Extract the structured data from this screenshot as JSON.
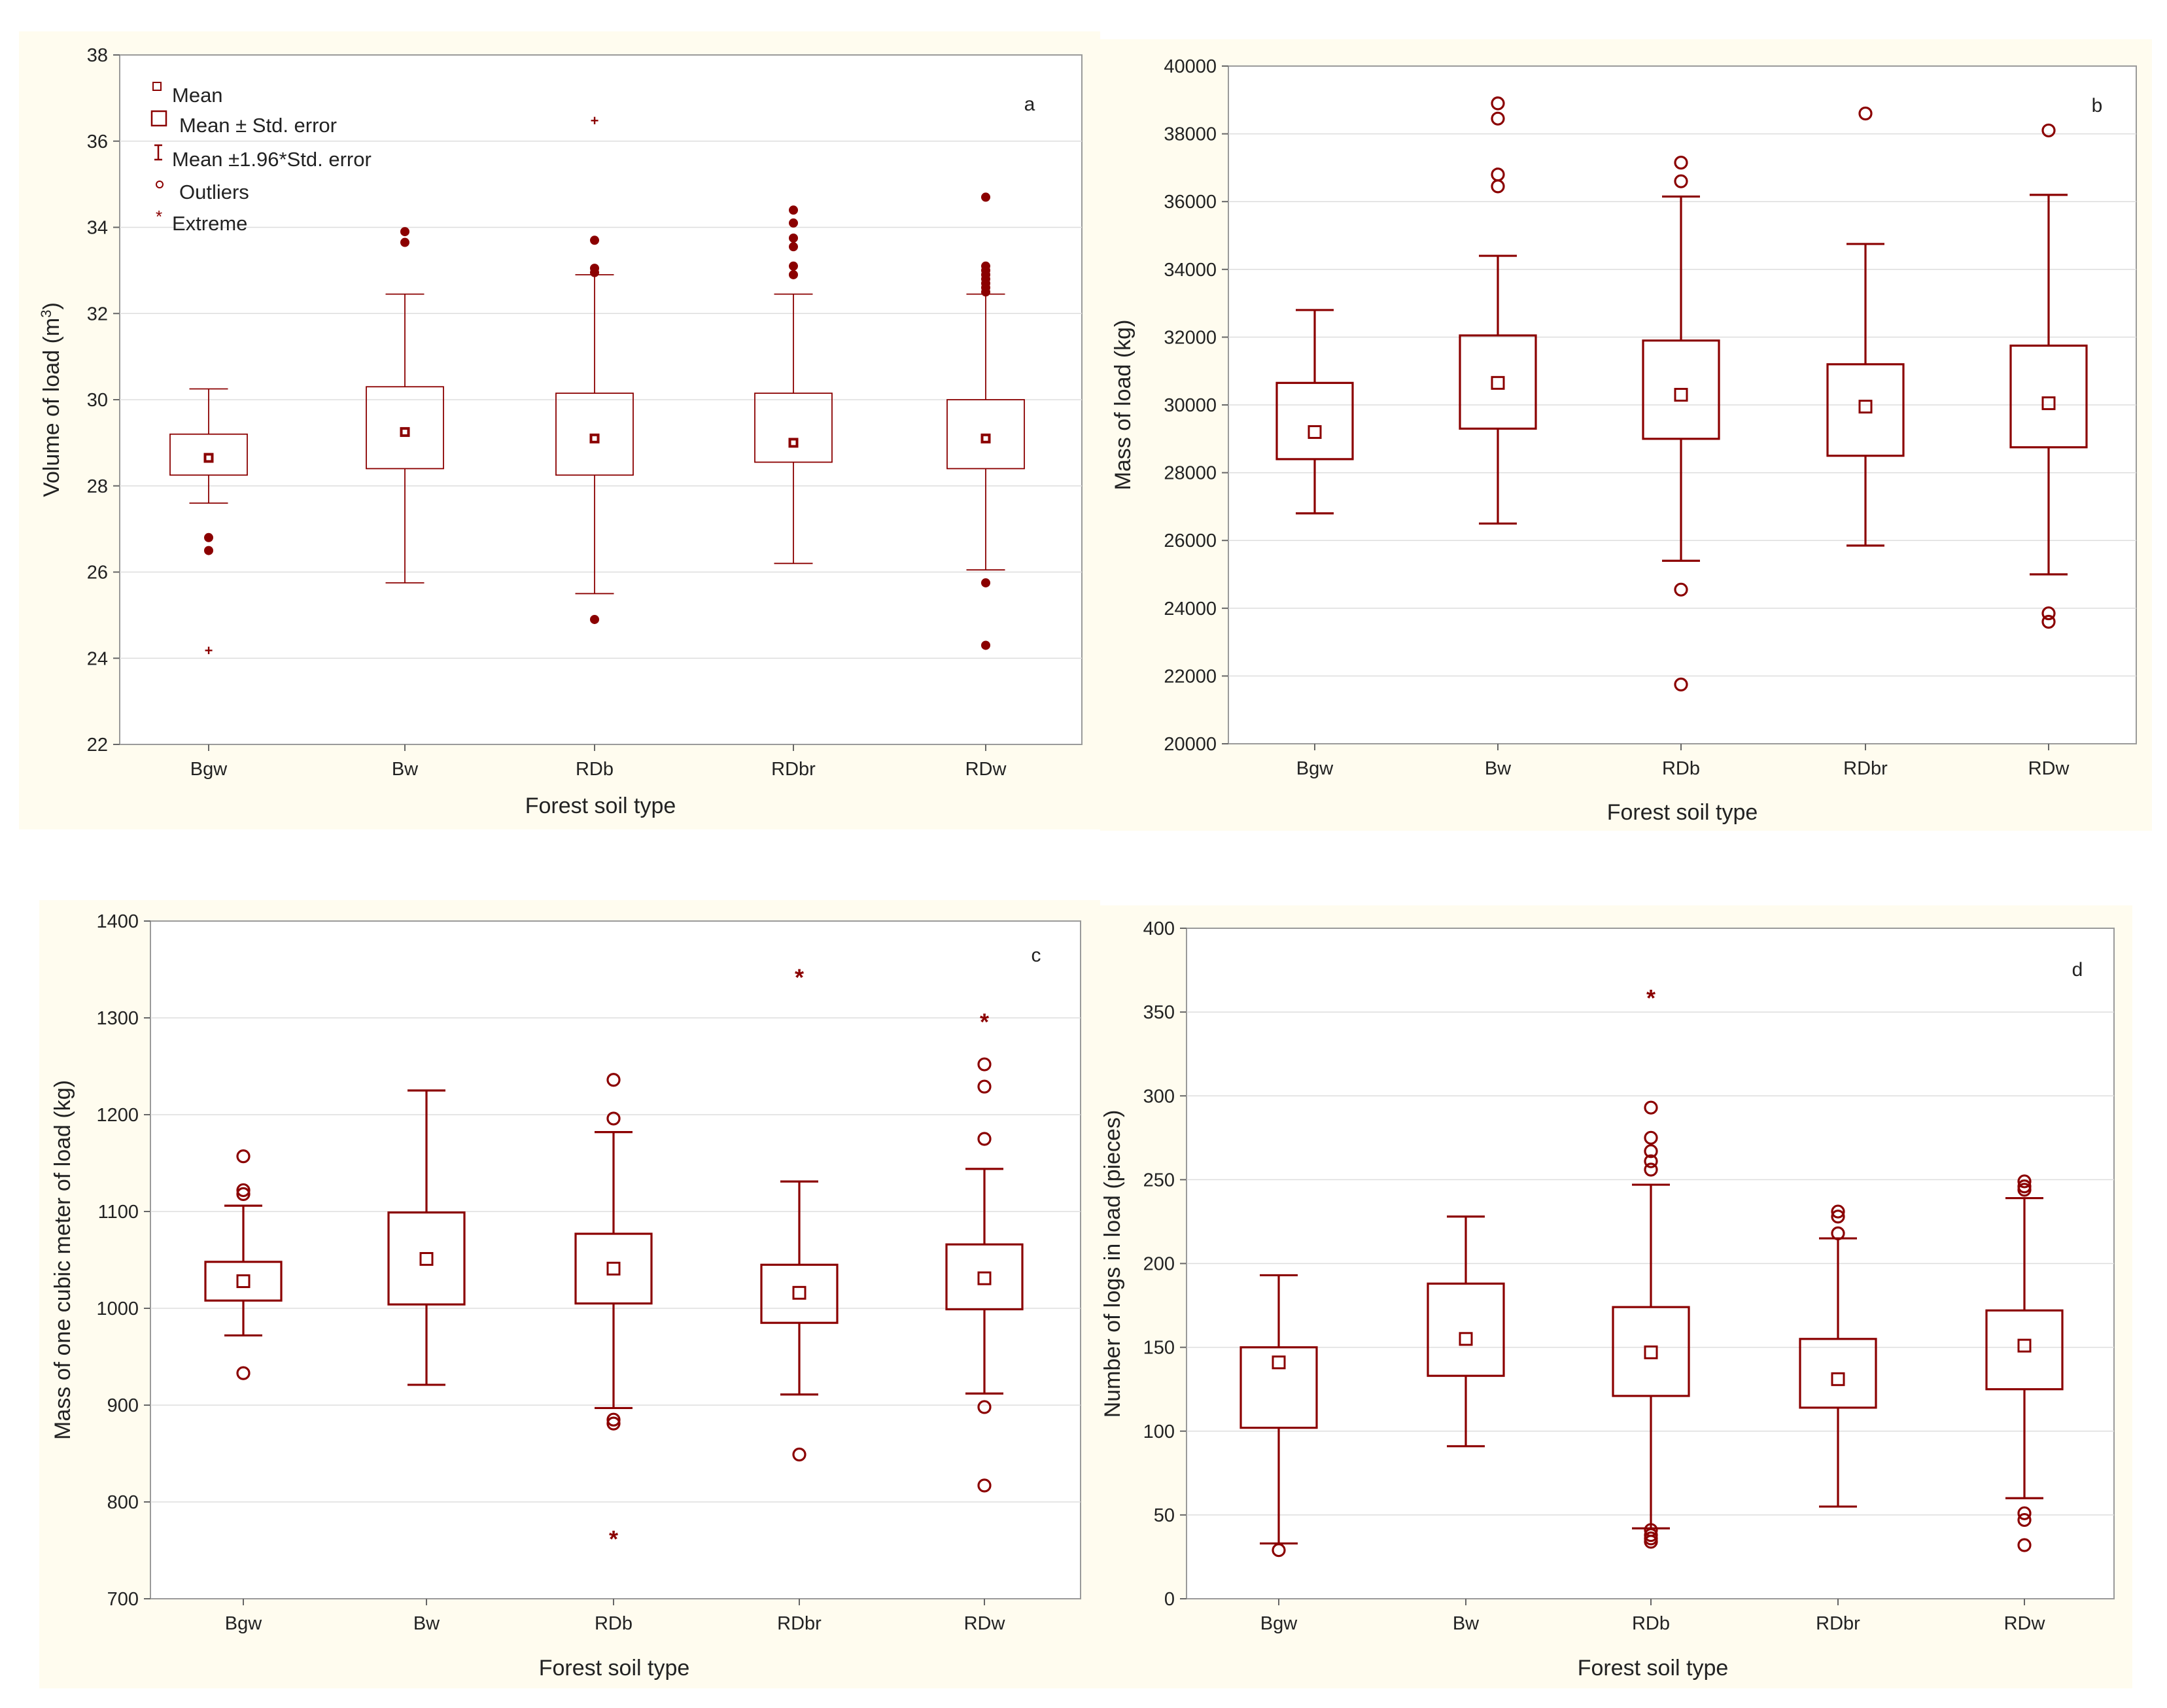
{
  "colors": {
    "accent": "#8B0000",
    "panel_background": "#FFFCEF",
    "grid": "#DDDDDD"
  },
  "chart_data": [
    {
      "type": "box",
      "panel": "a",
      "style": "thin",
      "xlabel": "Forest soil type",
      "ylabel": "Volume of load (m³)",
      "ylabel_main": "Volume of load (m",
      "ylabel_sup": "3",
      "ylabel_end": ")",
      "ylim": [
        22,
        38
      ],
      "yticks": [
        22,
        24,
        26,
        28,
        30,
        32,
        34,
        36,
        38
      ],
      "categories": [
        "Bgw",
        "Bw",
        "RDb",
        "RDbr",
        "RDw"
      ],
      "series": [
        {
          "name": "Bgw",
          "mean": 28.65,
          "se_low": 28.25,
          "se_high": 29.2,
          "ci_low": 27.6,
          "ci_high": 30.25,
          "outliers": [
            26.8,
            26.5
          ],
          "extremes": [
            24.2
          ]
        },
        {
          "name": "Bw",
          "mean": 29.25,
          "se_low": 28.4,
          "se_high": 30.3,
          "ci_low": 25.75,
          "ci_high": 32.45,
          "outliers": [
            33.9,
            33.65
          ],
          "extremes": []
        },
        {
          "name": "RDb",
          "mean": 29.1,
          "se_low": 28.25,
          "se_high": 30.15,
          "ci_low": 25.5,
          "ci_high": 32.9,
          "outliers": [
            33.7,
            33.05,
            32.95,
            24.9
          ],
          "extremes": [
            36.5
          ]
        },
        {
          "name": "RDbr",
          "mean": 29.0,
          "se_low": 28.55,
          "se_high": 30.15,
          "ci_low": 26.2,
          "ci_high": 32.45,
          "outliers": [
            34.4,
            34.1,
            33.75,
            33.55,
            33.1,
            32.9
          ],
          "extremes": []
        },
        {
          "name": "RDw",
          "mean": 29.1,
          "se_low": 28.4,
          "se_high": 30.0,
          "ci_low": 26.05,
          "ci_high": 32.45,
          "outliers": [
            34.7,
            33.1,
            33.0,
            32.9,
            32.8,
            32.7,
            32.6,
            32.5,
            25.75,
            24.3
          ],
          "extremes": []
        }
      ],
      "legend": {
        "items": [
          {
            "symbol": "mean",
            "label": "Mean"
          },
          {
            "symbol": "se",
            "label": "Mean ± Std. error"
          },
          {
            "symbol": "ci",
            "label": "Mean ±1.96*Std. error"
          },
          {
            "symbol": "outlier",
            "label": "Outliers"
          },
          {
            "symbol": "extreme",
            "label": "Extreme"
          }
        ]
      }
    },
    {
      "type": "box",
      "panel": "b",
      "style": "thick",
      "xlabel": "Forest soil type",
      "ylabel": "Mass of load (kg)",
      "ylim": [
        20000,
        40000
      ],
      "yticks": [
        20000,
        22000,
        24000,
        26000,
        28000,
        30000,
        32000,
        34000,
        36000,
        38000,
        40000
      ],
      "categories": [
        "Bgw",
        "Bw",
        "RDb",
        "RDbr",
        "RDw"
      ],
      "series": [
        {
          "name": "Bgw",
          "mean": 29200,
          "se_low": 28400,
          "se_high": 30650,
          "ci_low": 26800,
          "ci_high": 32800,
          "outliers": [],
          "extremes": []
        },
        {
          "name": "Bw",
          "mean": 30650,
          "se_low": 29300,
          "se_high": 32050,
          "ci_low": 26500,
          "ci_high": 34400,
          "outliers": [
            38900,
            38450,
            36800,
            36450
          ],
          "extremes": []
        },
        {
          "name": "RDb",
          "mean": 30300,
          "se_low": 29000,
          "se_high": 31900,
          "ci_low": 25400,
          "ci_high": 36150,
          "outliers": [
            37150,
            36600,
            24550,
            21750
          ],
          "extremes": []
        },
        {
          "name": "RDbr",
          "mean": 29950,
          "se_low": 28500,
          "se_high": 31200,
          "ci_low": 25850,
          "ci_high": 34750,
          "outliers": [
            38600
          ],
          "extremes": []
        },
        {
          "name": "RDw",
          "mean": 30050,
          "se_low": 28750,
          "se_high": 31750,
          "ci_low": 25000,
          "ci_high": 36200,
          "outliers": [
            38100,
            23850,
            23600
          ],
          "extremes": []
        }
      ]
    },
    {
      "type": "box",
      "panel": "c",
      "style": "thick",
      "xlabel": "Forest soil type",
      "ylabel": "Mass of one cubic meter of load (kg)",
      "ylim": [
        700,
        1400
      ],
      "yticks": [
        700,
        800,
        900,
        1000,
        1100,
        1200,
        1300,
        1400
      ],
      "categories": [
        "Bgw",
        "Bw",
        "RDb",
        "RDbr",
        "RDw"
      ],
      "series": [
        {
          "name": "Bgw",
          "mean": 1028,
          "se_low": 1008,
          "se_high": 1048,
          "ci_low": 972,
          "ci_high": 1106,
          "outliers": [
            1157,
            1122,
            1118,
            933
          ],
          "extremes": []
        },
        {
          "name": "Bw",
          "mean": 1051,
          "se_low": 1004,
          "se_high": 1099,
          "ci_low": 921,
          "ci_high": 1225,
          "outliers": [],
          "extremes": []
        },
        {
          "name": "RDb",
          "mean": 1041,
          "se_low": 1005,
          "se_high": 1077,
          "ci_low": 897,
          "ci_high": 1182,
          "outliers": [
            1236,
            1196,
            885,
            881
          ],
          "extremes": [
            763
          ]
        },
        {
          "name": "RDbr",
          "mean": 1016,
          "se_low": 985,
          "se_high": 1045,
          "ci_low": 911,
          "ci_high": 1131,
          "outliers": [
            849
          ],
          "extremes": [
            1343
          ]
        },
        {
          "name": "RDw",
          "mean": 1031,
          "se_low": 999,
          "se_high": 1066,
          "ci_low": 912,
          "ci_high": 1144,
          "outliers": [
            1252,
            1229,
            1175,
            898,
            817
          ],
          "extremes": [
            1297
          ]
        }
      ]
    },
    {
      "type": "box",
      "panel": "d",
      "style": "thick",
      "xlabel": "Forest soil type",
      "ylabel": "Number of logs in load (pieces)",
      "ylim": [
        0,
        400
      ],
      "yticks": [
        0,
        50,
        100,
        150,
        200,
        250,
        300,
        350,
        400
      ],
      "categories": [
        "Bgw",
        "Bw",
        "RDb",
        "RDbr",
        "RDw"
      ],
      "series": [
        {
          "name": "Bgw",
          "mean": 141,
          "se_low": 102,
          "se_high": 150,
          "ci_low": 33,
          "ci_high": 193,
          "outliers": [
            29
          ],
          "extremes": []
        },
        {
          "name": "Bw",
          "mean": 155,
          "se_low": 133,
          "se_high": 188,
          "ci_low": 91,
          "ci_high": 228,
          "outliers": [],
          "extremes": []
        },
        {
          "name": "RDb",
          "mean": 147,
          "se_low": 121,
          "se_high": 174,
          "ci_low": 42,
          "ci_high": 247,
          "outliers": [
            293,
            275,
            267,
            261,
            256,
            41,
            38,
            36,
            34
          ],
          "extremes": [
            359
          ]
        },
        {
          "name": "RDbr",
          "mean": 131,
          "se_low": 114,
          "se_high": 155,
          "ci_low": 55,
          "ci_high": 215,
          "outliers": [
            231,
            228,
            218
          ],
          "extremes": []
        },
        {
          "name": "RDw",
          "mean": 151,
          "se_low": 125,
          "se_high": 172,
          "ci_low": 60,
          "ci_high": 239,
          "outliers": [
            249,
            246,
            244,
            51,
            47,
            32
          ],
          "extremes": []
        }
      ]
    }
  ]
}
